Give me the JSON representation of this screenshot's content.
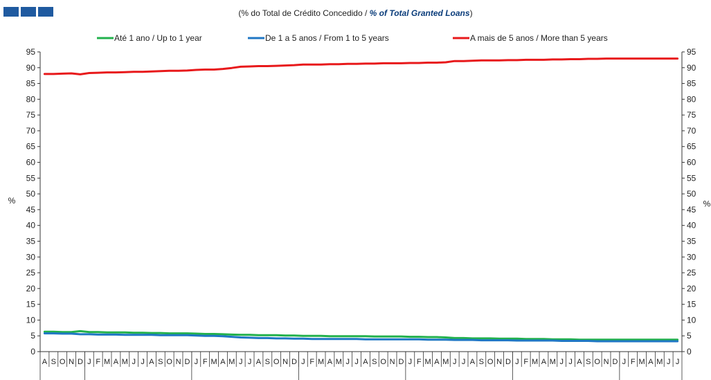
{
  "header": {
    "subtitle_prefix": "(% do Total de Crédito Concedido / ",
    "subtitle_en": "% of Total Granted Loans",
    "subtitle_suffix": ")"
  },
  "chart_data": {
    "type": "line",
    "ylabel_left": "%",
    "ylabel_right": "%",
    "ylim": [
      0,
      95
    ],
    "yticks": [
      0,
      5,
      10,
      15,
      20,
      25,
      30,
      35,
      40,
      45,
      50,
      55,
      60,
      65,
      70,
      75,
      80,
      85,
      90,
      95
    ],
    "grid": false,
    "legend_position": "top",
    "x_month_labels": [
      "A",
      "S",
      "O",
      "N",
      "D",
      "J",
      "F",
      "M",
      "A",
      "M",
      "J",
      "J",
      "A",
      "S",
      "O",
      "N",
      "D",
      "J",
      "F",
      "M",
      "A",
      "M",
      "J",
      "J",
      "A",
      "S",
      "O",
      "N",
      "D",
      "J",
      "F",
      "M",
      "A",
      "M",
      "J",
      "J",
      "A",
      "S",
      "O",
      "N",
      "D",
      "J",
      "F",
      "M",
      "A",
      "M",
      "J",
      "J",
      "A",
      "S",
      "O",
      "N",
      "D",
      "J",
      "F",
      "M",
      "A",
      "M",
      "J",
      "J",
      "A",
      "S",
      "O",
      "N",
      "D",
      "J",
      "F",
      "M",
      "A",
      "M",
      "J",
      "J"
    ],
    "series": [
      {
        "name": "Até 1 ano / Up to 1 year",
        "color": "#22b14c",
        "values": [
          6.3,
          6.3,
          6.2,
          6.2,
          6.5,
          6.2,
          6.2,
          6.1,
          6.1,
          6.1,
          6.0,
          6.0,
          5.9,
          5.9,
          5.8,
          5.8,
          5.8,
          5.7,
          5.6,
          5.6,
          5.5,
          5.4,
          5.3,
          5.3,
          5.2,
          5.2,
          5.2,
          5.1,
          5.1,
          5.0,
          5.0,
          5.0,
          4.9,
          4.9,
          4.9,
          4.9,
          4.9,
          4.8,
          4.8,
          4.8,
          4.8,
          4.7,
          4.7,
          4.6,
          4.6,
          4.5,
          4.3,
          4.3,
          4.2,
          4.2,
          4.2,
          4.1,
          4.1,
          4.1,
          4.0,
          4.0,
          4.0,
          3.9,
          3.9,
          3.9,
          3.8,
          3.8,
          3.8,
          3.8,
          3.8,
          3.8,
          3.8,
          3.8,
          3.8,
          3.8,
          3.8,
          3.8
        ]
      },
      {
        "name": "De 1 a 5 anos / From 1 to 5 years",
        "color": "#1f77c4",
        "values": [
          5.8,
          5.8,
          5.7,
          5.7,
          5.5,
          5.5,
          5.4,
          5.4,
          5.4,
          5.3,
          5.3,
          5.3,
          5.3,
          5.2,
          5.2,
          5.2,
          5.2,
          5.1,
          5.0,
          5.0,
          4.9,
          4.7,
          4.5,
          4.4,
          4.3,
          4.3,
          4.2,
          4.2,
          4.1,
          4.1,
          4.0,
          4.0,
          4.0,
          4.0,
          4.0,
          4.0,
          3.9,
          3.9,
          3.9,
          3.9,
          3.9,
          3.9,
          3.9,
          3.8,
          3.8,
          3.8,
          3.7,
          3.7,
          3.7,
          3.6,
          3.6,
          3.6,
          3.6,
          3.5,
          3.5,
          3.5,
          3.5,
          3.5,
          3.4,
          3.4,
          3.4,
          3.4,
          3.3,
          3.3,
          3.3,
          3.3,
          3.3,
          3.3,
          3.3,
          3.3,
          3.3,
          3.3
        ]
      },
      {
        "name": "A mais de 5 anos / More than 5 years",
        "color": "#e8191b",
        "values": [
          88.0,
          88.0,
          88.1,
          88.2,
          87.9,
          88.3,
          88.4,
          88.5,
          88.5,
          88.6,
          88.7,
          88.7,
          88.8,
          88.9,
          89.0,
          89.0,
          89.1,
          89.3,
          89.4,
          89.4,
          89.6,
          89.9,
          90.3,
          90.4,
          90.5,
          90.5,
          90.6,
          90.7,
          90.8,
          91.0,
          91.0,
          91.0,
          91.1,
          91.1,
          91.2,
          91.2,
          91.3,
          91.3,
          91.4,
          91.4,
          91.4,
          91.5,
          91.5,
          91.6,
          91.6,
          91.7,
          92.1,
          92.1,
          92.2,
          92.3,
          92.3,
          92.3,
          92.4,
          92.4,
          92.5,
          92.5,
          92.5,
          92.6,
          92.6,
          92.7,
          92.7,
          92.8,
          92.8,
          92.9,
          92.9,
          92.9,
          92.9,
          92.9,
          92.9,
          92.9,
          92.9,
          92.9
        ]
      }
    ]
  }
}
